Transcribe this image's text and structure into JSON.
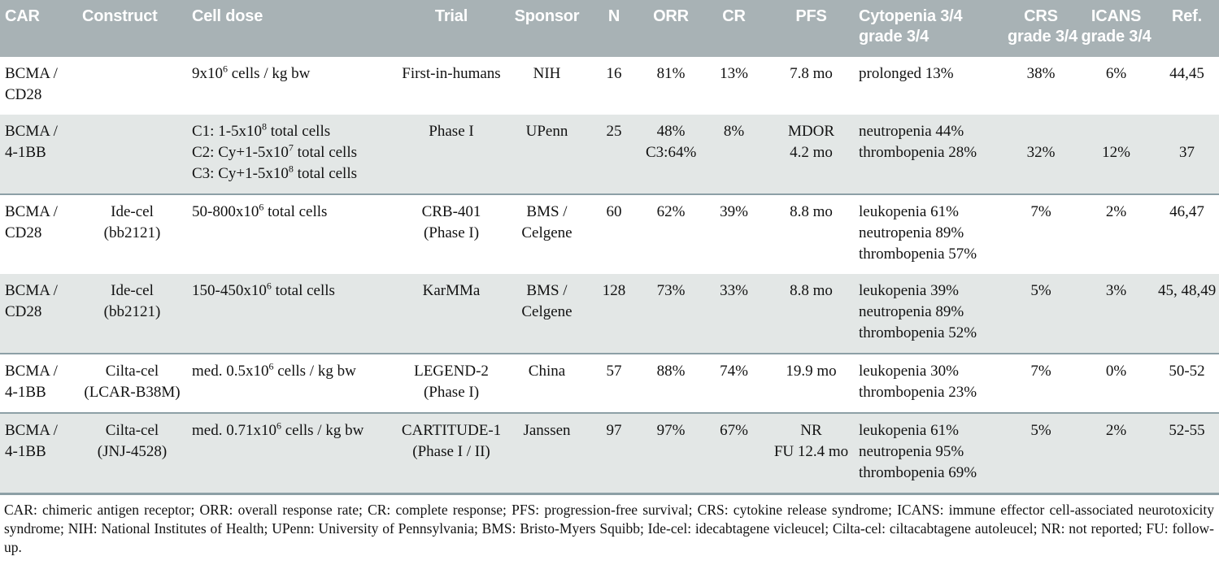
{
  "colors": {
    "header_bg": "#a8b2b5",
    "header_text": "#ffffff",
    "row_alt_bg": "#e3e7e6",
    "rule": "#8da0a6",
    "text": "#121212"
  },
  "table": {
    "columns": [
      {
        "id": "car",
        "label_lines": [
          "CAR"
        ],
        "align": "left",
        "header_align": "left"
      },
      {
        "id": "construct",
        "label_lines": [
          "Construct"
        ],
        "align": "center",
        "header_align": "left"
      },
      {
        "id": "cell_dose",
        "label_lines": [
          "Cell dose"
        ],
        "align": "left",
        "header_align": "left"
      },
      {
        "id": "trial",
        "label_lines": [
          "Trial"
        ],
        "align": "center",
        "header_align": "center"
      },
      {
        "id": "sponsor",
        "label_lines": [
          "Sponsor"
        ],
        "align": "center",
        "header_align": "center"
      },
      {
        "id": "n",
        "label_lines": [
          "N"
        ],
        "align": "center",
        "header_align": "center"
      },
      {
        "id": "orr",
        "label_lines": [
          "ORR"
        ],
        "align": "center",
        "header_align": "center"
      },
      {
        "id": "cr",
        "label_lines": [
          "CR"
        ],
        "align": "center",
        "header_align": "center"
      },
      {
        "id": "pfs",
        "label_lines": [
          "PFS"
        ],
        "align": "center",
        "header_align": "center"
      },
      {
        "id": "cytopenia",
        "label_lines": [
          "Cytopenia 3/4",
          "grade 3/4"
        ],
        "align": "left",
        "header_align": "left"
      },
      {
        "id": "crs",
        "label_lines": [
          "CRS",
          "grade 3/4"
        ],
        "align": "center",
        "header_align": "center"
      },
      {
        "id": "icans",
        "label_lines": [
          "ICANS",
          "grade 3/4"
        ],
        "align": "center",
        "header_align": "center"
      },
      {
        "id": "ref",
        "label_lines": [
          "Ref."
        ],
        "align": "center",
        "header_align": "center"
      }
    ],
    "rows": [
      {
        "shaded": false,
        "rule_above": false,
        "middle_cells": [],
        "cells": {
          "car": [
            "BCMA /",
            "CD28"
          ],
          "construct": [],
          "cell_dose": [
            "9x10^6 cells / kg bw"
          ],
          "trial": [
            "First-in-humans"
          ],
          "sponsor": [
            "NIH"
          ],
          "n": [
            "16"
          ],
          "orr": [
            "81%"
          ],
          "cr": [
            "13%"
          ],
          "pfs": [
            "7.8 mo"
          ],
          "cytopenia": [
            "prolonged 13%"
          ],
          "crs": [
            "38%"
          ],
          "icans": [
            "6%"
          ],
          "ref": [
            "44,45"
          ]
        }
      },
      {
        "shaded": true,
        "rule_above": false,
        "middle_cells": [
          "crs",
          "icans",
          "ref"
        ],
        "cells": {
          "car": [
            "BCMA /",
            "4-1BB"
          ],
          "construct": [],
          "cell_dose": [
            "C1: 1-5x10^8 total cells",
            "C2: Cy+1-5x10^7 total cells",
            "C3: Cy+1-5x10^8 total cells"
          ],
          "trial": [
            "Phase I"
          ],
          "sponsor": [
            "UPenn"
          ],
          "n": [
            "25"
          ],
          "orr": [
            "48%",
            "C3:64%"
          ],
          "cr": [
            "8%"
          ],
          "pfs": [
            "MDOR",
            "4.2 mo"
          ],
          "cytopenia": [
            "neutropenia 44%",
            "thrombopenia 28%"
          ],
          "crs": [
            "32%"
          ],
          "icans": [
            "12%"
          ],
          "ref": [
            "37"
          ]
        }
      },
      {
        "shaded": false,
        "rule_above": true,
        "middle_cells": [],
        "cells": {
          "car": [
            "BCMA /",
            "CD28"
          ],
          "construct": [
            "Ide-cel",
            "(bb2121)"
          ],
          "cell_dose": [
            "50-800x10^6 total cells"
          ],
          "trial": [
            "CRB-401",
            "(Phase I)"
          ],
          "sponsor": [
            "BMS /",
            "Celgene"
          ],
          "n": [
            "60"
          ],
          "orr": [
            "62%"
          ],
          "cr": [
            "39%"
          ],
          "pfs": [
            "8.8 mo"
          ],
          "cytopenia": [
            "leukopenia 61%",
            "neutropenia 89%",
            "thrombopenia 57%"
          ],
          "crs": [
            "7%"
          ],
          "icans": [
            "2%"
          ],
          "ref": [
            "46,47"
          ]
        }
      },
      {
        "shaded": true,
        "rule_above": false,
        "middle_cells": [],
        "cells": {
          "car": [
            "BCMA /",
            "CD28"
          ],
          "construct": [
            "Ide-cel",
            "(bb2121)"
          ],
          "cell_dose": [
            "150-450x10^6 total cells"
          ],
          "trial": [
            "KarMMa"
          ],
          "sponsor": [
            "BMS /",
            "Celgene"
          ],
          "n": [
            "128"
          ],
          "orr": [
            "73%"
          ],
          "cr": [
            "33%"
          ],
          "pfs": [
            "8.8 mo"
          ],
          "cytopenia": [
            "leukopenia 39%",
            "neutropenia 89%",
            "thrombopenia 52%"
          ],
          "crs": [
            "5%"
          ],
          "icans": [
            "3%"
          ],
          "ref": [
            "45, 48,49"
          ]
        }
      },
      {
        "shaded": false,
        "rule_above": true,
        "middle_cells": [],
        "cells": {
          "car": [
            "BCMA /",
            "4-1BB"
          ],
          "construct": [
            "Cilta-cel",
            "(LCAR-B38M)"
          ],
          "cell_dose": [
            "med. 0.5x10^6 cells / kg bw"
          ],
          "trial": [
            "LEGEND-2",
            "(Phase I)"
          ],
          "sponsor": [
            "China"
          ],
          "n": [
            "57"
          ],
          "orr": [
            "88%"
          ],
          "cr": [
            "74%"
          ],
          "pfs": [
            "19.9 mo"
          ],
          "cytopenia": [
            "leukopenia 30%",
            "thrombopenia 23%"
          ],
          "crs": [
            "7%"
          ],
          "icans": [
            "0%"
          ],
          "ref": [
            "50-52"
          ]
        }
      },
      {
        "shaded": true,
        "rule_above": true,
        "middle_cells": [],
        "cells": {
          "car": [
            "BCMA /",
            "4-1BB"
          ],
          "construct": [
            "Cilta-cel",
            "(JNJ-4528)"
          ],
          "cell_dose": [
            "med. 0.71x10^6 cells / kg bw"
          ],
          "trial": [
            "CARTITUDE-1",
            "(Phase I / II)"
          ],
          "sponsor": [
            "Janssen"
          ],
          "n": [
            "97"
          ],
          "orr": [
            "97%"
          ],
          "cr": [
            "67%"
          ],
          "pfs": [
            "NR",
            "FU 12.4 mo"
          ],
          "cytopenia": [
            "leukopenia 61%",
            "neutropenia 95%",
            "thrombopenia 69%"
          ],
          "crs": [
            "5%"
          ],
          "icans": [
            "2%"
          ],
          "ref": [
            "52-55"
          ]
        }
      }
    ]
  },
  "footnote": "CAR: chimeric antigen receptor; ORR: overall response rate; CR: complete response; PFS: progression-free survival; CRS: cytokine release syndrome; ICANS: immune effector cell-associated neurotoxicity syndrome; NIH: National Institutes of Health; UPenn: University of Pennsylvania; BMS: Bristo-Myers Squibb; Ide-cel: idecabtagene vicleucel; Cilta-cel: ciltacabtagene autoleucel; NR: not reported; FU: follow-up."
}
